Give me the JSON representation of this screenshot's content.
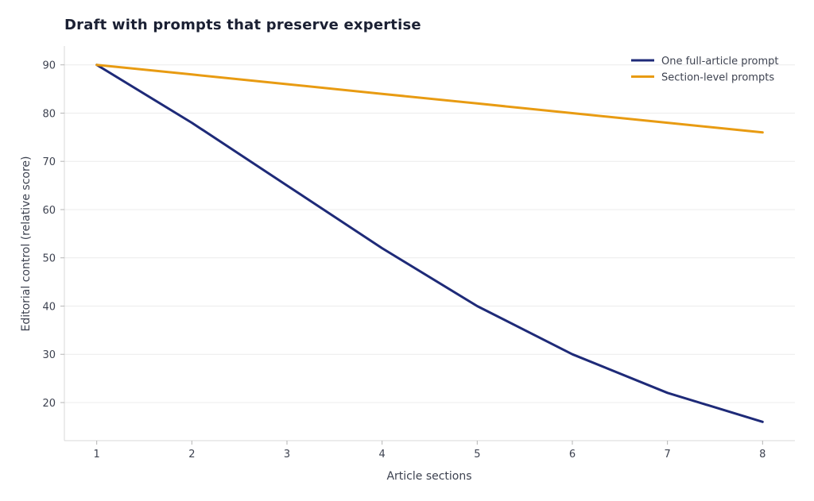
{
  "chart_data": {
    "type": "line",
    "title": "Draft with prompts that preserve expertise",
    "xlabel": "Article sections",
    "ylabel": "Editorial control (relative score)",
    "x": [
      1,
      2,
      3,
      4,
      5,
      6,
      7,
      8
    ],
    "xlim": [
      0.66,
      8.34
    ],
    "ylim": [
      12.1,
      93.9
    ],
    "yticks": [
      20,
      30,
      40,
      50,
      60,
      70,
      80,
      90
    ],
    "grid": "horizontal",
    "legend": "top-right",
    "series": [
      {
        "name": "One full-article prompt",
        "color": "#1e2a78",
        "values": [
          90,
          78,
          65,
          52,
          40,
          30,
          22,
          16
        ]
      },
      {
        "name": "Section-level prompts",
        "color": "#e89b12",
        "values": [
          90,
          88,
          86,
          84,
          82,
          80,
          78,
          76
        ]
      }
    ],
    "colors": {
      "grid": "#ececec",
      "axis": "#d9d9d9",
      "text": "#3d4250"
    }
  }
}
